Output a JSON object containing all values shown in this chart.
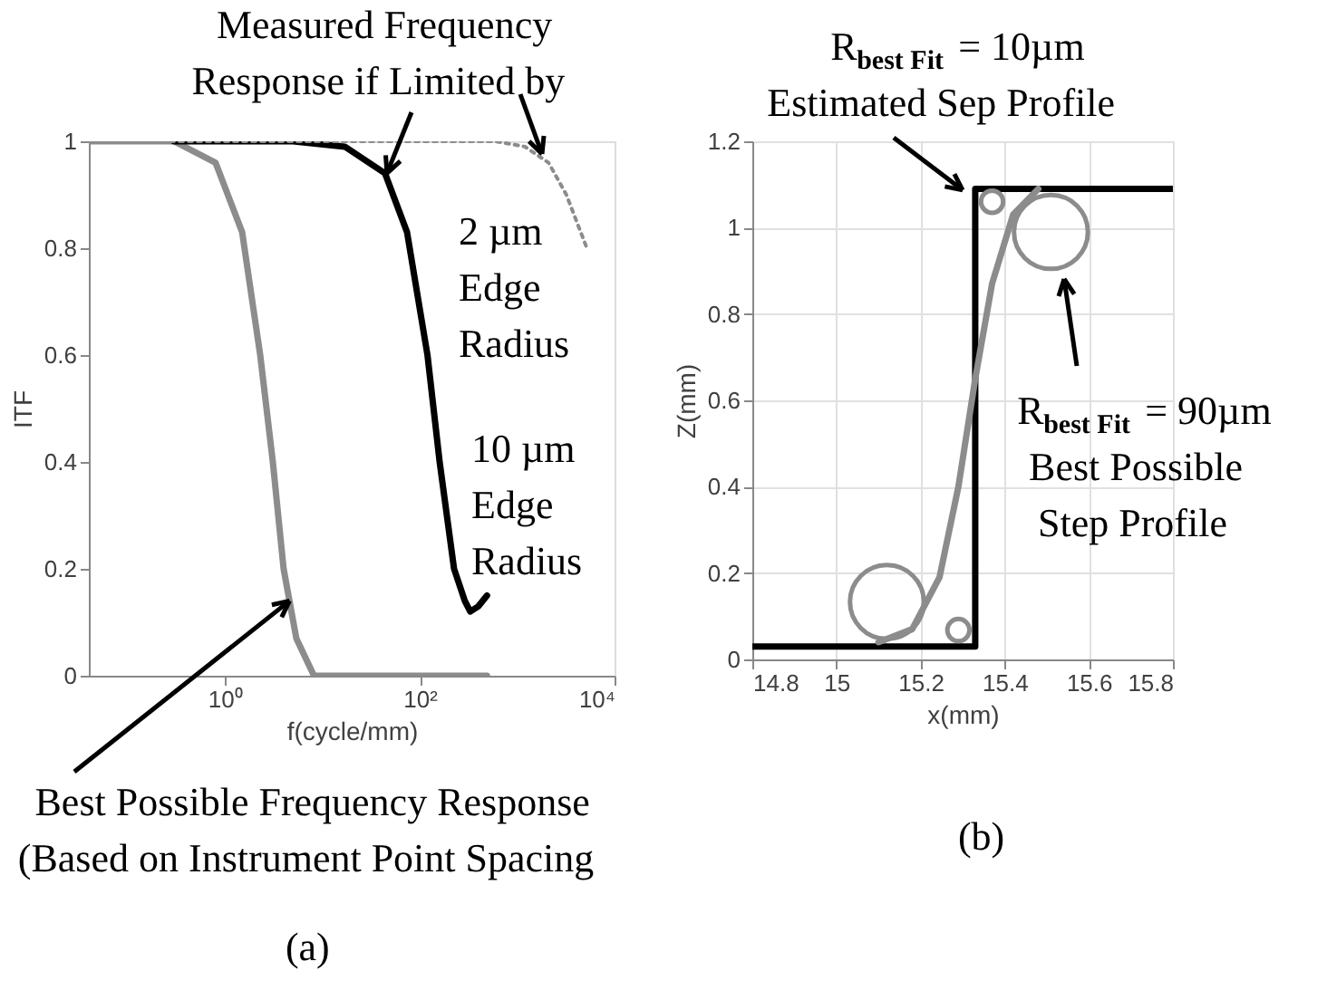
{
  "chart_data": [
    {
      "type": "line",
      "xlabel": "f(cycle/mm)",
      "ylabel": "ITF",
      "log": "x",
      "xlim": [
        0.04,
        10000
      ],
      "xticks": [
        {
          "value": 1,
          "label": "10⁰"
        },
        {
          "value": 100,
          "label": "10²"
        },
        {
          "value": 10000,
          "label": "10⁴"
        }
      ],
      "ylim": [
        0,
        1
      ],
      "yticks": [
        0,
        0.2,
        0.4,
        0.6,
        0.8,
        1
      ],
      "grid": false,
      "series": [
        {
          "color": "#8c8c8c",
          "line_style": "solid",
          "x": [
            0.04,
            0.1,
            0.3,
            0.8,
            1.5,
            2.3,
            3.1,
            4,
            5.4,
            8.2,
            20,
            100,
            490
          ],
          "values": [
            1,
            1,
            1,
            0.96,
            0.83,
            0.6,
            0.4,
            0.2,
            0.07,
            0,
            0,
            0,
            0
          ]
        },
        {
          "color": "#000000",
          "line_style": "solid",
          "x": [
            0.3,
            1,
            5,
            17,
            44,
            74,
            120,
            160,
            225,
            290,
            330,
            400,
            490
          ],
          "values": [
            1,
            1,
            1,
            0.99,
            0.94,
            0.83,
            0.6,
            0.4,
            0.2,
            0.14,
            0.12,
            0.13,
            0.15
          ]
        },
        {
          "color": "#8c8c8c",
          "line_style": "dotted",
          "x": [
            0.04,
            1,
            100,
            600,
            1200,
            2100,
            3200,
            5200
          ],
          "values": [
            1,
            1,
            1,
            1,
            0.99,
            0.96,
            0.9,
            0.8
          ]
        }
      ],
      "annotations": [
        {
          "text": "Measured Frequency\nResponse if Limited by",
          "x": 46,
          "y": 0.94
        },
        "2 µm\nEdge\nRadius",
        "10 µm\nEdge\nRadius",
        {
          "text": "Best Possible Frequency Response\n(Based on Instrument Point Spacing",
          "x": 4.6,
          "y": 0.14
        },
        "(a)"
      ]
    },
    {
      "type": "line",
      "xlabel": "x(mm)",
      "ylabel": "Z(mm)",
      "xlim": [
        14.8,
        15.8
      ],
      "xticks": [
        14.8,
        15,
        15.2,
        15.4,
        15.6,
        15.8
      ],
      "ylim": [
        0,
        1.2
      ],
      "yticks": [
        0,
        0.2,
        0.4,
        0.6,
        0.8,
        1,
        1.2
      ],
      "grid": true,
      "series": [
        {
          "color": "#000000",
          "line_style": "solid",
          "x": [
            14.8,
            15.33,
            15.33,
            15.33,
            15.33,
            15.33,
            15.33,
            15.33,
            15.8
          ],
          "values": [
            0.03,
            0.03,
            0.16,
            0.36,
            0.56,
            0.76,
            0.96,
            1.09,
            1.09
          ]
        },
        {
          "color": "#8c8c8c",
          "line_style": "solid",
          "x": [
            15.1,
            15.18,
            15.245,
            15.29,
            15.33,
            15.37,
            15.42,
            15.48
          ],
          "values": [
            0.04,
            0.07,
            0.19,
            0.4,
            0.65,
            0.87,
            1.03,
            1.09
          ]
        },
        {
          "type": "bubble",
          "color": "#8c8c8c",
          "x": [
            15.12,
            15.51,
            15.29,
            15.37
          ],
          "values": [
            0.133,
            0.99,
            0.068,
            1.06
          ],
          "sizes": [
            1,
            1,
            0.09,
            0.09
          ]
        }
      ],
      "annotations": [
        {
          "text": "R$_{best Fit}$ = 10µm\nEstimated Sep Profile",
          "x": 15.3,
          "y": 1.087
        },
        "R$_{best Fit}$ = 90µm\nBest Possible\nStep Profile",
        "(b)"
      ]
    }
  ]
}
